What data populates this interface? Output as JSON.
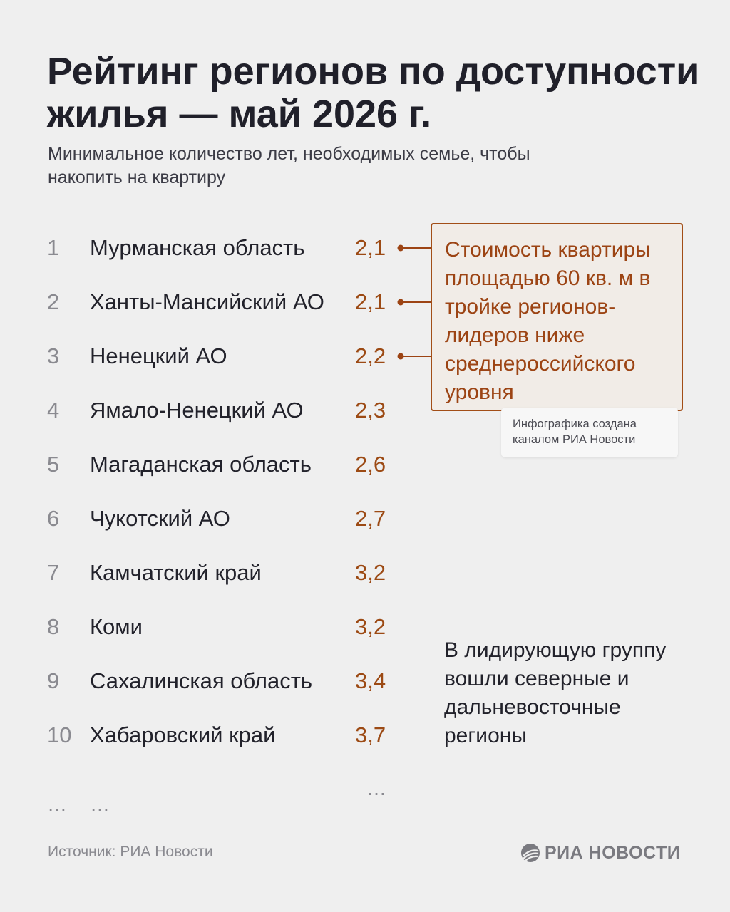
{
  "title": "Рейтинг регионов по доступности жилья — май 2026 г.",
  "subtitle": "Минимальное количество лет, необходимых семье, чтобы накопить на квартиру",
  "chart_data": {
    "type": "table",
    "title": "Рейтинг регионов по доступности жилья — май 2026 г.",
    "subtitle": "Минимальное количество лет, необходимых семье, чтобы накопить на квартиру",
    "rows": [
      {
        "rank": "1",
        "region": "Мурманская область",
        "value": "2,1"
      },
      {
        "rank": "2",
        "region": "Ханты-Мансийский АО",
        "value": "2,1"
      },
      {
        "rank": "3",
        "region": "Ненецкий АО",
        "value": "2,2"
      },
      {
        "rank": "4",
        "region": "Ямало-Ненецкий АО",
        "value": "2,3"
      },
      {
        "rank": "5",
        "region": "Магаданская область",
        "value": "2,6"
      },
      {
        "rank": "6",
        "region": "Чукотский АО",
        "value": "2,7"
      },
      {
        "rank": "7",
        "region": "Камчатский край",
        "value": "3,2"
      },
      {
        "rank": "8",
        "region": "Коми",
        "value": "3,2"
      },
      {
        "rank": "9",
        "region": "Сахалинская область",
        "value": "3,4"
      },
      {
        "rank": "10",
        "region": "Хабаровский край",
        "value": "3,7"
      }
    ],
    "ellipsis": "…",
    "highlight_rows": [
      1,
      2,
      3
    ],
    "annotation": "Стоимость квартиры площадью 60 кв. м в тройке регионов-лидеров ниже среднероссийского уровня",
    "note": "В лидирующую группу вошли северные и дальневосточные регионы"
  },
  "credit": "Инфографика создана каналом РИА Новости",
  "source": "Источник: РИА Новости",
  "logo": {
    "icon": "ria-logo-icon",
    "text": "РИА НОВОСТИ"
  },
  "colors": {
    "accent": "#9c4414",
    "background": "#efefef",
    "text": "#22222b",
    "muted": "#8a8a90"
  }
}
